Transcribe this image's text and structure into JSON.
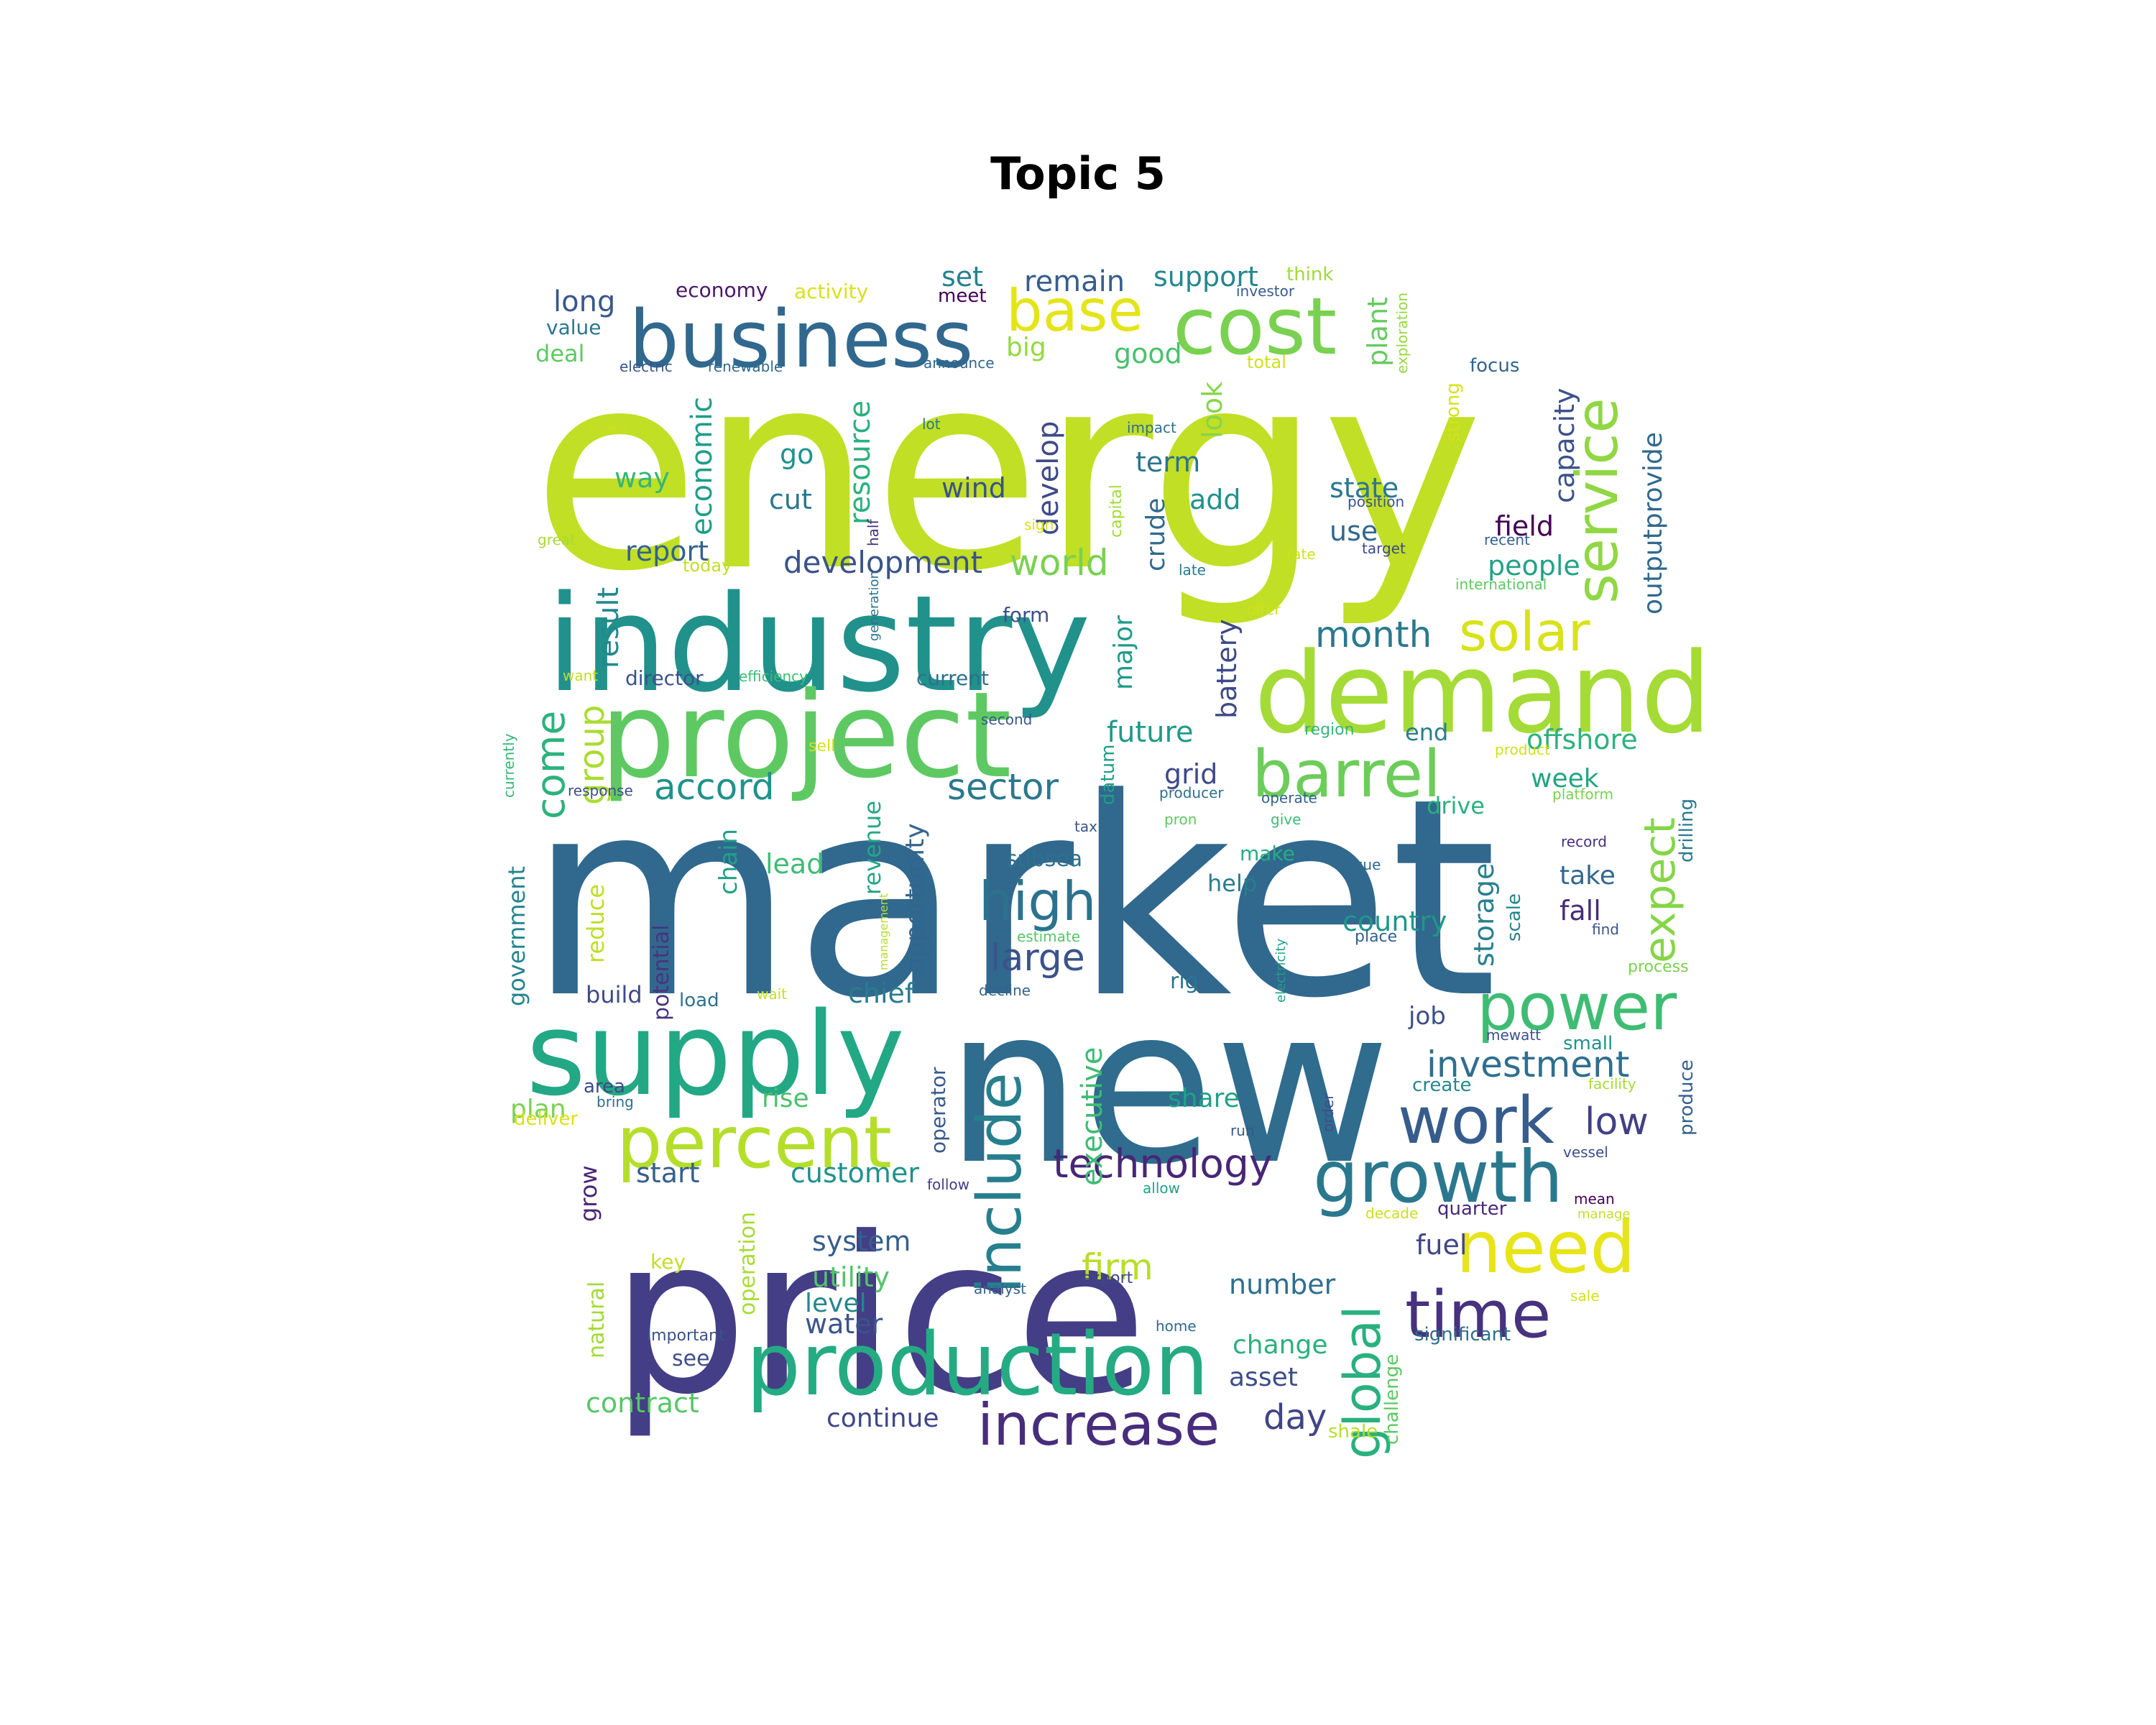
{
  "title": "Topic 5",
  "palette": "viridis",
  "words": [
    {
      "text": "energy",
      "color": "#c1df24"
    },
    {
      "text": "market",
      "color": "#31688e"
    },
    {
      "text": "new",
      "color": "#2f6c8e"
    },
    {
      "text": "price",
      "color": "#433e85"
    },
    {
      "text": "industry",
      "color": "#21918c"
    },
    {
      "text": "project",
      "color": "#5ec962"
    },
    {
      "text": "demand",
      "color": "#a5db36"
    },
    {
      "text": "business",
      "color": "#31688e"
    },
    {
      "text": "supply",
      "color": "#22a884"
    },
    {
      "text": "production",
      "color": "#25ab82"
    },
    {
      "text": "cost",
      "color": "#7ad151"
    },
    {
      "text": "growth",
      "color": "#2a788e"
    },
    {
      "text": "work",
      "color": "#365c8d"
    },
    {
      "text": "power",
      "color": "#3fbc73"
    },
    {
      "text": "percent",
      "color": "#b5de2b"
    },
    {
      "text": "time",
      "color": "#46327e"
    },
    {
      "text": "barrel",
      "color": "#6ccd5a"
    },
    {
      "text": "need",
      "color": "#e7e419"
    },
    {
      "text": "include",
      "color": "#277f8e"
    },
    {
      "text": "service",
      "color": "#90d743"
    },
    {
      "text": "base",
      "color": "#e5e419"
    },
    {
      "text": "increase",
      "color": "#472d7b"
    },
    {
      "text": "solar",
      "color": "#d8e219"
    },
    {
      "text": "high",
      "color": "#2c728e"
    },
    {
      "text": "global",
      "color": "#2ab07f"
    },
    {
      "text": "expect",
      "color": "#86d549"
    },
    {
      "text": "technology",
      "color": "#482677"
    },
    {
      "text": "investment",
      "color": "#2e6f8e"
    },
    {
      "text": "accord",
      "color": "#21918c"
    },
    {
      "text": "sector",
      "color": "#2a788e"
    },
    {
      "text": "large",
      "color": "#3b528b"
    },
    {
      "text": "world",
      "color": "#7ad151"
    },
    {
      "text": "month",
      "color": "#29798e"
    },
    {
      "text": "low",
      "color": "#424086"
    },
    {
      "text": "come",
      "color": "#2db27d"
    },
    {
      "text": "firm",
      "color": "#b8de29"
    },
    {
      "text": "group",
      "color": "#aadc32"
    },
    {
      "text": "development",
      "color": "#3b528b"
    },
    {
      "text": "day",
      "color": "#414487"
    },
    {
      "text": "result",
      "color": "#23888e"
    },
    {
      "text": "economic",
      "color": "#1f9e89"
    },
    {
      "text": "resource",
      "color": "#2ab07f"
    },
    {
      "text": "develop",
      "color": "#3e4a89"
    },
    {
      "text": "executive",
      "color": "#3dbc74"
    },
    {
      "text": "future",
      "color": "#1f9a8a"
    },
    {
      "text": "storage",
      "color": "#27808e"
    },
    {
      "text": "customer",
      "color": "#21918c"
    },
    {
      "text": "system",
      "color": "#355f8d"
    },
    {
      "text": "utility",
      "color": "#52c569"
    },
    {
      "text": "field",
      "color": "#440154"
    },
    {
      "text": "people",
      "color": "#20a386"
    },
    {
      "text": "country",
      "color": "#1f968b"
    },
    {
      "text": "battery",
      "color": "#3e4989"
    },
    {
      "text": "chief",
      "color": "#287c8e"
    },
    {
      "text": "report",
      "color": "#34618d"
    },
    {
      "text": "offshore",
      "color": "#2db27d"
    },
    {
      "text": "support",
      "color": "#23888e"
    },
    {
      "text": "remain",
      "color": "#365d8d"
    },
    {
      "text": "long",
      "color": "#38588c"
    },
    {
      "text": "outputprovide",
      "color": "#31688e"
    },
    {
      "text": "capacity",
      "color": "#3b528b"
    },
    {
      "text": "state",
      "color": "#2a778e"
    },
    {
      "text": "plant",
      "color": "#65cb5e"
    },
    {
      "text": "look",
      "color": "#86d549"
    },
    {
      "text": "term",
      "color": "#2c728e"
    },
    {
      "text": "wind",
      "color": "#3b528b"
    },
    {
      "text": "good",
      "color": "#4ac16d"
    },
    {
      "text": "set",
      "color": "#26818e"
    },
    {
      "text": "big",
      "color": "#95d840"
    },
    {
      "text": "way",
      "color": "#35b779"
    },
    {
      "text": "go",
      "color": "#20928c"
    },
    {
      "text": "cut",
      "color": "#2a778e"
    },
    {
      "text": "add",
      "color": "#21918c"
    },
    {
      "text": "use",
      "color": "#31688e"
    },
    {
      "text": "crude",
      "color": "#2f6b8e"
    },
    {
      "text": "major",
      "color": "#1f9a8a"
    },
    {
      "text": "fuel",
      "color": "#404688"
    },
    {
      "text": "number",
      "color": "#2e6e8e"
    },
    {
      "text": "water",
      "color": "#3a548c"
    },
    {
      "text": "level",
      "color": "#24878e"
    },
    {
      "text": "contract",
      "color": "#56c667"
    },
    {
      "text": "continue",
      "color": "#3f4788"
    },
    {
      "text": "change",
      "color": "#2ab07f"
    },
    {
      "text": "asset",
      "color": "#3d4d8a"
    },
    {
      "text": "week",
      "color": "#21a685"
    },
    {
      "text": "take",
      "color": "#31688e"
    },
    {
      "text": "fall",
      "color": "#472c7a"
    },
    {
      "text": "drive",
      "color": "#2ab07f"
    },
    {
      "text": "end",
      "color": "#287d8e"
    },
    {
      "text": "grid",
      "color": "#3e4a89"
    },
    {
      "text": "sell",
      "color": "#d2e21b"
    },
    {
      "text": "lead",
      "color": "#3dbc74"
    },
    {
      "text": "help",
      "color": "#287d8e"
    },
    {
      "text": "make",
      "color": "#26ad81"
    },
    {
      "text": "opportunity",
      "color": "#32658e"
    },
    {
      "text": "revenue",
      "color": "#22a884"
    },
    {
      "text": "chain",
      "color": "#1fa088"
    },
    {
      "text": "subsea",
      "color": "#2c718e"
    },
    {
      "text": "share",
      "color": "#1fa187"
    },
    {
      "text": "rise",
      "color": "#4ac16d"
    },
    {
      "text": "start",
      "color": "#35608d"
    },
    {
      "text": "plan",
      "color": "#7ad151"
    },
    {
      "text": "build",
      "color": "#3e4989"
    },
    {
      "text": "reduce",
      "color": "#bddf26"
    },
    {
      "text": "government",
      "color": "#25848e"
    },
    {
      "text": "potential",
      "color": "#463480"
    },
    {
      "text": "natural",
      "color": "#a2da37"
    },
    {
      "text": "grow",
      "color": "#482475"
    },
    {
      "text": "operation",
      "color": "#a8db34"
    },
    {
      "text": "operator",
      "color": "#38598c"
    },
    {
      "text": "key",
      "color": "#c0df25"
    },
    {
      "text": "see",
      "color": "#3d4e8a"
    },
    {
      "text": "job",
      "color": "#3c4f8a"
    },
    {
      "text": "rig",
      "color": "#2b748e"
    },
    {
      "text": "small",
      "color": "#20938c"
    },
    {
      "text": "produce",
      "color": "#34608d"
    },
    {
      "text": "quarter",
      "color": "#482878"
    },
    {
      "text": "significant",
      "color": "#2e6d8e"
    },
    {
      "text": "challenge",
      "color": "#5cc863"
    },
    {
      "text": "shale",
      "color": "#b5de2b"
    },
    {
      "text": "scale",
      "color": "#26828e"
    },
    {
      "text": "drilling",
      "color": "#2a788e"
    },
    {
      "text": "director",
      "color": "#3b528b"
    },
    {
      "text": "current",
      "color": "#2c718e"
    },
    {
      "text": "economy",
      "color": "#48186a"
    },
    {
      "text": "activity",
      "color": "#d8e219"
    },
    {
      "text": "meet",
      "color": "#440154"
    },
    {
      "text": "value",
      "color": "#2a768e"
    },
    {
      "text": "deal",
      "color": "#5ec962"
    },
    {
      "text": "think",
      "color": "#a0da39"
    },
    {
      "text": "focus",
      "color": "#33638d"
    },
    {
      "text": "strong",
      "color": "#d5e21a"
    },
    {
      "text": "exploration",
      "color": "#95d840"
    },
    {
      "text": "total",
      "color": "#d0e11c"
    },
    {
      "text": "investor",
      "color": "#365c8d"
    },
    {
      "text": "electric",
      "color": "#3a548c"
    },
    {
      "text": "renewable",
      "color": "#2f6b8e"
    },
    {
      "text": "announce",
      "color": "#31678e"
    },
    {
      "text": "invest",
      "color": "#c8e020"
    },
    {
      "text": "lot",
      "color": "#2a778e"
    },
    {
      "text": "impact",
      "color": "#2c718e"
    },
    {
      "text": "capital",
      "color": "#a2da37"
    },
    {
      "text": "half",
      "color": "#46327e"
    },
    {
      "text": "sign",
      "color": "#d8e219"
    },
    {
      "text": "position",
      "color": "#3a548c"
    },
    {
      "text": "target",
      "color": "#3e4989"
    },
    {
      "text": "rate",
      "color": "#cde11d"
    },
    {
      "text": "late",
      "color": "#2a788e"
    },
    {
      "text": "great",
      "color": "#a5db36"
    },
    {
      "text": "today",
      "color": "#c0df25"
    },
    {
      "text": "recent",
      "color": "#34618d"
    },
    {
      "text": "international",
      "color": "#5ec962"
    },
    {
      "text": "generation",
      "color": "#2c728e"
    },
    {
      "text": "form",
      "color": "#3b528b"
    },
    {
      "text": "offer",
      "color": "#cde11d"
    },
    {
      "text": "want",
      "color": "#c0df25"
    },
    {
      "text": "efficiency",
      "color": "#3dbc74"
    },
    {
      "text": "second",
      "color": "#39568c"
    },
    {
      "text": "region",
      "color": "#35b779"
    },
    {
      "text": "product",
      "color": "#d0e11c"
    },
    {
      "text": "platform",
      "color": "#7ad151"
    },
    {
      "text": "currently",
      "color": "#35b779"
    },
    {
      "text": "response",
      "color": "#3d4e8a"
    },
    {
      "text": "producer",
      "color": "#2e6e8e"
    },
    {
      "text": "operate",
      "color": "#33638d"
    },
    {
      "text": "give",
      "color": "#3dbc74"
    },
    {
      "text": "pron",
      "color": "#5ec962"
    },
    {
      "text": "tax",
      "color": "#3a548c"
    },
    {
      "text": "datum",
      "color": "#1f9e89"
    },
    {
      "text": "record",
      "color": "#46307e"
    },
    {
      "text": "issue",
      "color": "#31688e"
    },
    {
      "text": "find",
      "color": "#3a548c"
    },
    {
      "text": "place",
      "color": "#34618d"
    },
    {
      "text": "process",
      "color": "#7ad151"
    },
    {
      "text": "management",
      "color": "#b5de2b"
    },
    {
      "text": "estimate",
      "color": "#56c667"
    },
    {
      "text": "electricity",
      "color": "#1fa088"
    },
    {
      "text": "load",
      "color": "#2c728e"
    },
    {
      "text": "wait",
      "color": "#c8e020"
    },
    {
      "text": "decline",
      "color": "#33638d"
    },
    {
      "text": "mewatt",
      "color": "#3b528b"
    },
    {
      "text": "area",
      "color": "#3e4a89"
    },
    {
      "text": "bring",
      "color": "#2e6e8e"
    },
    {
      "text": "deliver",
      "color": "#d8e219"
    },
    {
      "text": "order",
      "color": "#3d4e8a"
    },
    {
      "text": "create",
      "color": "#23898e"
    },
    {
      "text": "facility",
      "color": "#a5db36"
    },
    {
      "text": "run",
      "color": "#39568c"
    },
    {
      "text": "vessel",
      "color": "#3d4e8a"
    },
    {
      "text": "follow",
      "color": "#433e85"
    },
    {
      "text": "allow",
      "color": "#20a386"
    },
    {
      "text": "mean",
      "color": "#440154"
    },
    {
      "text": "manage",
      "color": "#c0df25"
    },
    {
      "text": "decade",
      "color": "#c8e020"
    },
    {
      "text": "analyst",
      "color": "#34618d"
    },
    {
      "text": "export",
      "color": "#404688"
    },
    {
      "text": "sale",
      "color": "#d2e21b"
    },
    {
      "text": "home",
      "color": "#2f6b8e"
    },
    {
      "text": "important",
      "color": "#3b528b"
    }
  ]
}
